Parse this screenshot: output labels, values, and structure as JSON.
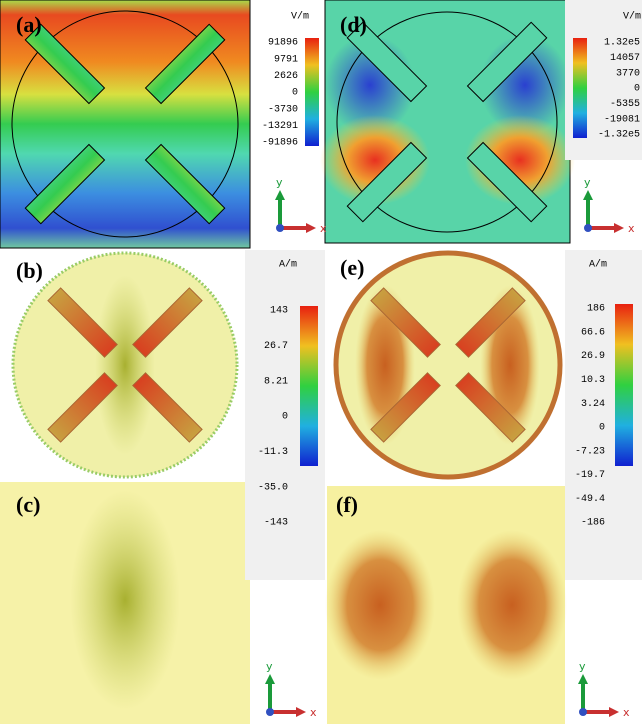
{
  "panels": [
    {
      "label": "(a)"
    },
    {
      "label": "(b)"
    },
    {
      "label": "(c)"
    },
    {
      "label": "(d)"
    },
    {
      "label": "(e)"
    },
    {
      "label": "(f)"
    }
  ],
  "colorbars": [
    {
      "unit": "V/m",
      "ticks": [
        "91896",
        "9791",
        "2626",
        "0",
        "-3730",
        "-13291",
        "-91896"
      ]
    },
    {
      "unit": "V/m",
      "ticks": [
        "1.32e5",
        "14057",
        "3770",
        "0",
        "-5355",
        "-19081",
        "-1.32e5"
      ]
    },
    {
      "unit": "A/m",
      "ticks": [
        "143",
        "26.7",
        "8.21",
        "0",
        "-11.3",
        "-35.0",
        "-143"
      ]
    },
    {
      "unit": "A/m",
      "ticks": [
        "186",
        "66.6",
        "26.9",
        "10.3",
        "3.24",
        "0",
        "-7.23",
        "-19.7",
        "-49.4",
        "-186"
      ]
    }
  ],
  "axis_labels": {
    "x": "x",
    "y": "y"
  }
}
